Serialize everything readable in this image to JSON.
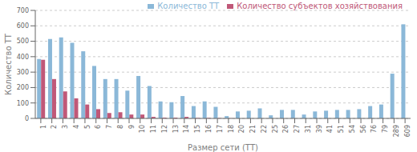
{
  "chart_data": {
    "type": "bar",
    "xlabel": "Размер сети (ТТ)",
    "ylabel": "Количество ТТ",
    "categories": [
      "1",
      "2",
      "3",
      "4",
      "5",
      "6",
      "7",
      "8",
      "9",
      "10",
      "11",
      "12",
      "13",
      "14",
      "15",
      "16",
      "17",
      "18",
      "20",
      "21",
      "22",
      "25",
      "26",
      "27",
      "31",
      "39",
      "41",
      "51",
      "54",
      "56",
      "76",
      "79",
      "289",
      "609"
    ],
    "series": [
      {
        "name": "Количество ТТ",
        "color": "#8BB8D8",
        "values": [
          385,
          515,
          525,
          490,
          435,
          340,
          255,
          255,
          180,
          275,
          210,
          110,
          105,
          145,
          80,
          110,
          75,
          15,
          45,
          50,
          65,
          20,
          55,
          55,
          25,
          45,
          50,
          55,
          55,
          60,
          80,
          90,
          290,
          610
        ]
      },
      {
        "name": "Количество субъектов хозяйствования",
        "color": "#C05878",
        "values": [
          380,
          255,
          175,
          130,
          90,
          60,
          35,
          40,
          25,
          25,
          10,
          5,
          5,
          10,
          3,
          3,
          2,
          1,
          0,
          0,
          0,
          0,
          0,
          0,
          0,
          0,
          0,
          0,
          0,
          0,
          0,
          0,
          0,
          0
        ]
      }
    ],
    "ylim": [
      0,
      700
    ],
    "yticks": [
      0,
      100,
      200,
      300,
      400,
      500,
      600,
      700
    ],
    "grid": true,
    "legend": "upper right"
  }
}
